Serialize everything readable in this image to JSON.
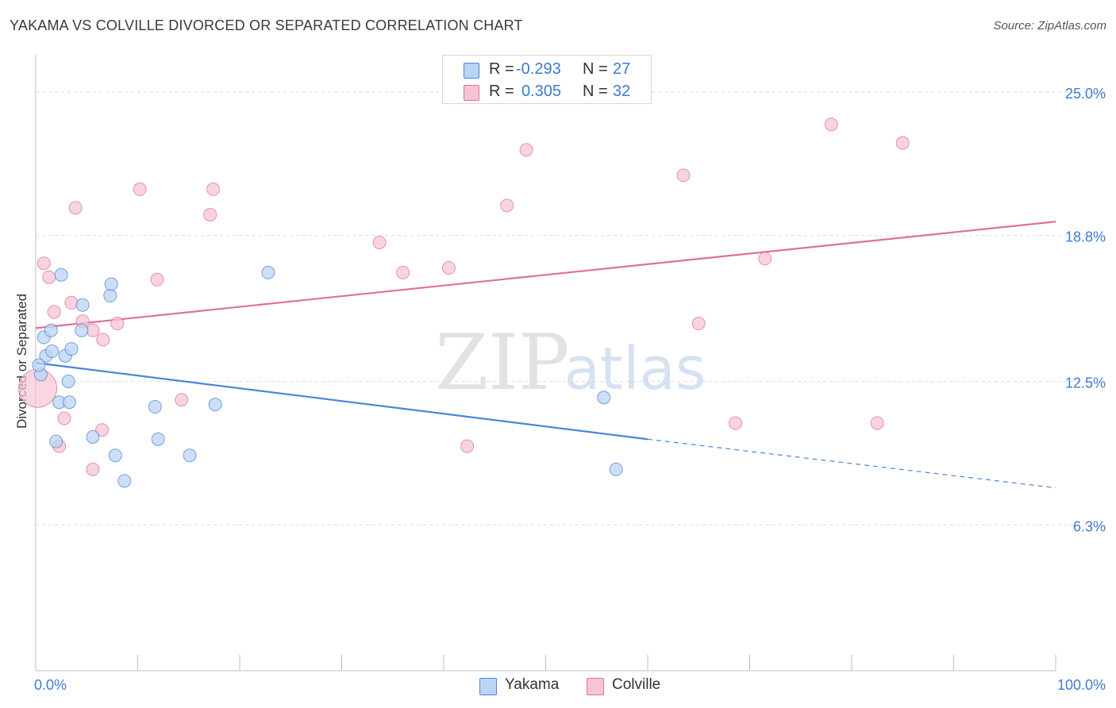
{
  "chart_data": {
    "type": "scatter",
    "title": "YAKAMA VS COLVILLE DIVORCED OR SEPARATED CORRELATION CHART",
    "source": "Source: ZipAtlas.com",
    "xlabel": "",
    "ylabel": "Divorced or Separated",
    "xlim": [
      0,
      100
    ],
    "ylim": [
      0,
      26.3
    ],
    "x_tick_labels": [
      {
        "value": 0,
        "label": "0.0%"
      },
      {
        "value": 100,
        "label": "100.0%"
      }
    ],
    "y_tick_labels": [
      {
        "value": 25.0,
        "label": "25.0%"
      },
      {
        "value": 18.8,
        "label": "18.8%"
      },
      {
        "value": 12.5,
        "label": "12.5%"
      },
      {
        "value": 6.3,
        "label": "6.3%"
      }
    ],
    "watermark": {
      "zip": "ZIP",
      "atlas": "atlas"
    },
    "series": [
      {
        "name": "Yakama",
        "color": "#4a86d8",
        "fill": "#bcd4f3",
        "R": "-0.293",
        "N": "27",
        "trend": {
          "x0": 0,
          "y0": 13.3,
          "x1": 60,
          "y1": 10.0,
          "x_dash_end": 100,
          "y_dash_end": 7.9
        },
        "points": [
          [
            0.5,
            12.8
          ],
          [
            0.8,
            14.4
          ],
          [
            1.0,
            13.6
          ],
          [
            1.5,
            14.7
          ],
          [
            1.6,
            13.8
          ],
          [
            2.0,
            9.9
          ],
          [
            2.3,
            11.6
          ],
          [
            2.5,
            17.1
          ],
          [
            2.9,
            13.6
          ],
          [
            3.2,
            12.5
          ],
          [
            3.3,
            11.6
          ],
          [
            3.5,
            13.9
          ],
          [
            4.5,
            14.7
          ],
          [
            4.6,
            15.8
          ],
          [
            5.6,
            10.1
          ],
          [
            7.3,
            16.2
          ],
          [
            7.4,
            16.7
          ],
          [
            7.8,
            9.3
          ],
          [
            8.7,
            8.2
          ],
          [
            11.7,
            11.4
          ],
          [
            12.0,
            10.0
          ],
          [
            15.1,
            9.3
          ],
          [
            17.6,
            11.5
          ],
          [
            22.8,
            17.2
          ],
          [
            55.7,
            11.8
          ],
          [
            56.9,
            8.7
          ],
          [
            0.3,
            13.2
          ]
        ]
      },
      {
        "name": "Colville",
        "color": "#e07099",
        "fill": "#f6c5d4",
        "R": "0.305",
        "N": "32",
        "trend": {
          "x0": 0,
          "y0": 14.8,
          "x1": 100,
          "y1": 19.4
        },
        "points": [
          [
            0.2,
            12.2
          ],
          [
            0.8,
            17.6
          ],
          [
            1.3,
            17.0
          ],
          [
            1.8,
            15.5
          ],
          [
            2.3,
            9.7
          ],
          [
            2.8,
            10.9
          ],
          [
            3.5,
            15.9
          ],
          [
            3.9,
            20.0
          ],
          [
            4.6,
            15.1
          ],
          [
            5.6,
            14.7
          ],
          [
            5.6,
            8.7
          ],
          [
            6.5,
            10.4
          ],
          [
            6.6,
            14.3
          ],
          [
            8.0,
            15.0
          ],
          [
            10.2,
            20.8
          ],
          [
            11.9,
            16.9
          ],
          [
            14.3,
            11.7
          ],
          [
            17.1,
            19.7
          ],
          [
            17.4,
            20.8
          ],
          [
            33.7,
            18.5
          ],
          [
            36.0,
            17.2
          ],
          [
            40.5,
            17.4
          ],
          [
            42.3,
            9.7
          ],
          [
            46.2,
            20.1
          ],
          [
            48.1,
            22.5
          ],
          [
            63.5,
            21.4
          ],
          [
            65.0,
            15.0
          ],
          [
            68.6,
            10.7
          ],
          [
            71.5,
            17.8
          ],
          [
            78.0,
            23.6
          ],
          [
            82.5,
            10.7
          ],
          [
            85.0,
            22.8
          ]
        ]
      }
    ]
  },
  "legend_top": {
    "r_label": "R =",
    "n_label": "N ="
  }
}
